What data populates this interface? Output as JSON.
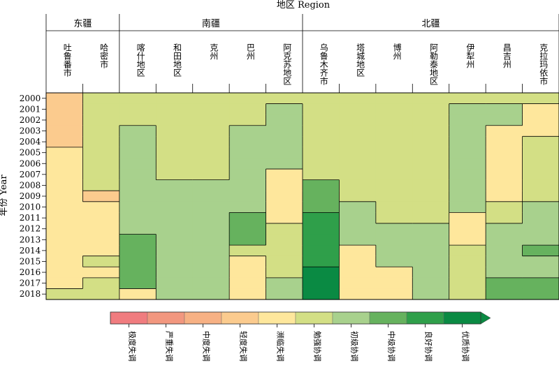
{
  "chart_data": {
    "type": "heatmap",
    "title": "地区 Region",
    "ylabel": "年份 Year",
    "groups": [
      {
        "name": "东疆",
        "count": 2
      },
      {
        "name": "南疆",
        "count": 5
      },
      {
        "name": "北疆",
        "count": 7
      }
    ],
    "regions": [
      "吐鲁番市",
      "哈密市",
      "喀什地区",
      "和田地区",
      "克州",
      "巴州",
      "阿克苏地区",
      "乌鲁木齐市",
      "塔城地区",
      "博州",
      "阿勒泰地区",
      "伊犁州",
      "昌吉州",
      "克拉玛依市"
    ],
    "years": [
      2000,
      2001,
      2002,
      2003,
      2004,
      2005,
      2006,
      2007,
      2008,
      2009,
      2010,
      2011,
      2012,
      2013,
      2014,
      2015,
      2016,
      2017,
      2018
    ],
    "levels": [
      "极度失调",
      "严重失调",
      "中度失调",
      "轻度失调",
      "濒临失调",
      "勉强协调",
      "初级协调",
      "中级协调",
      "良好协调",
      "优质协调"
    ],
    "colors": [
      "#f07c7f",
      "#f2977f",
      "#f7b184",
      "#fbcb8e",
      "#fee79c",
      "#d3df85",
      "#a8d18d",
      "#66b25e",
      "#2f9f4a",
      "#0a8a43"
    ],
    "grid": false,
    "legend_position": "bottom",
    "matrix": [
      [
        3,
        5,
        5,
        5,
        5,
        5,
        5,
        5,
        5,
        5,
        5,
        5,
        5,
        5
      ],
      [
        3,
        5,
        5,
        5,
        5,
        5,
        6,
        5,
        5,
        5,
        5,
        6,
        6,
        4
      ],
      [
        3,
        5,
        5,
        5,
        5,
        5,
        6,
        5,
        5,
        5,
        5,
        6,
        6,
        4
      ],
      [
        3,
        5,
        6,
        5,
        5,
        6,
        6,
        5,
        5,
        5,
        5,
        6,
        4,
        4
      ],
      [
        3,
        5,
        6,
        5,
        5,
        6,
        6,
        5,
        5,
        5,
        5,
        6,
        4,
        5
      ],
      [
        4,
        5,
        6,
        5,
        5,
        6,
        6,
        5,
        5,
        5,
        5,
        6,
        4,
        5
      ],
      [
        4,
        5,
        6,
        5,
        5,
        6,
        6,
        5,
        5,
        5,
        5,
        6,
        4,
        5
      ],
      [
        4,
        5,
        6,
        5,
        5,
        6,
        4,
        5,
        5,
        5,
        5,
        6,
        4,
        5
      ],
      [
        4,
        5,
        6,
        6,
        6,
        6,
        4,
        7,
        5,
        5,
        5,
        6,
        4,
        5
      ],
      [
        4,
        3,
        6,
        6,
        6,
        6,
        4,
        7,
        5,
        5,
        5,
        6,
        4,
        5
      ],
      [
        4,
        4,
        6,
        6,
        6,
        6,
        4,
        7,
        6,
        5,
        5,
        6,
        5,
        6
      ],
      [
        4,
        4,
        6,
        6,
        6,
        7,
        4,
        8,
        6,
        5,
        5,
        4,
        5,
        6
      ],
      [
        4,
        4,
        6,
        6,
        6,
        7,
        5,
        8,
        6,
        6,
        6,
        4,
        6,
        6
      ],
      [
        4,
        4,
        7,
        6,
        6,
        7,
        5,
        8,
        6,
        6,
        6,
        4,
        6,
        6
      ],
      [
        4,
        4,
        7,
        6,
        6,
        5,
        5,
        8,
        4,
        6,
        6,
        5,
        6,
        7
      ],
      [
        4,
        5,
        7,
        6,
        6,
        4,
        5,
        8,
        4,
        6,
        6,
        5,
        6,
        6
      ],
      [
        4,
        4,
        7,
        6,
        6,
        4,
        5,
        9,
        4,
        4,
        6,
        5,
        6,
        6
      ],
      [
        4,
        5,
        7,
        6,
        6,
        4,
        6,
        9,
        4,
        4,
        6,
        5,
        7,
        7
      ],
      [
        5,
        5,
        4,
        6,
        6,
        4,
        6,
        9,
        4,
        4,
        6,
        5,
        7,
        7
      ]
    ]
  }
}
